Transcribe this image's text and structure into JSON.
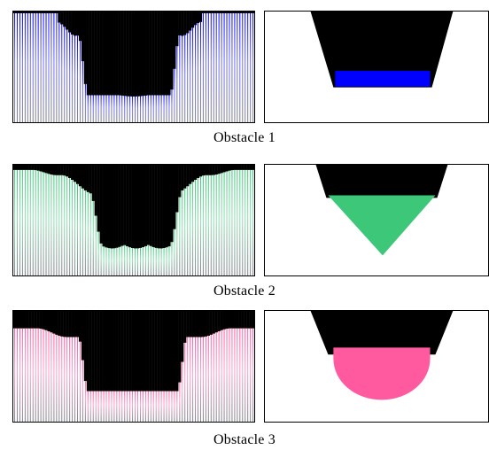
{
  "rows": [
    {
      "caption": "Obstacle 1",
      "color": "#0000ff",
      "shape": "rectangle"
    },
    {
      "caption": "Obstacle 2",
      "color": "#3cc878",
      "shape": "triangle"
    },
    {
      "caption": "Obstacle 3",
      "color": "#ff5aa0",
      "shape": "semicircle"
    }
  ]
}
